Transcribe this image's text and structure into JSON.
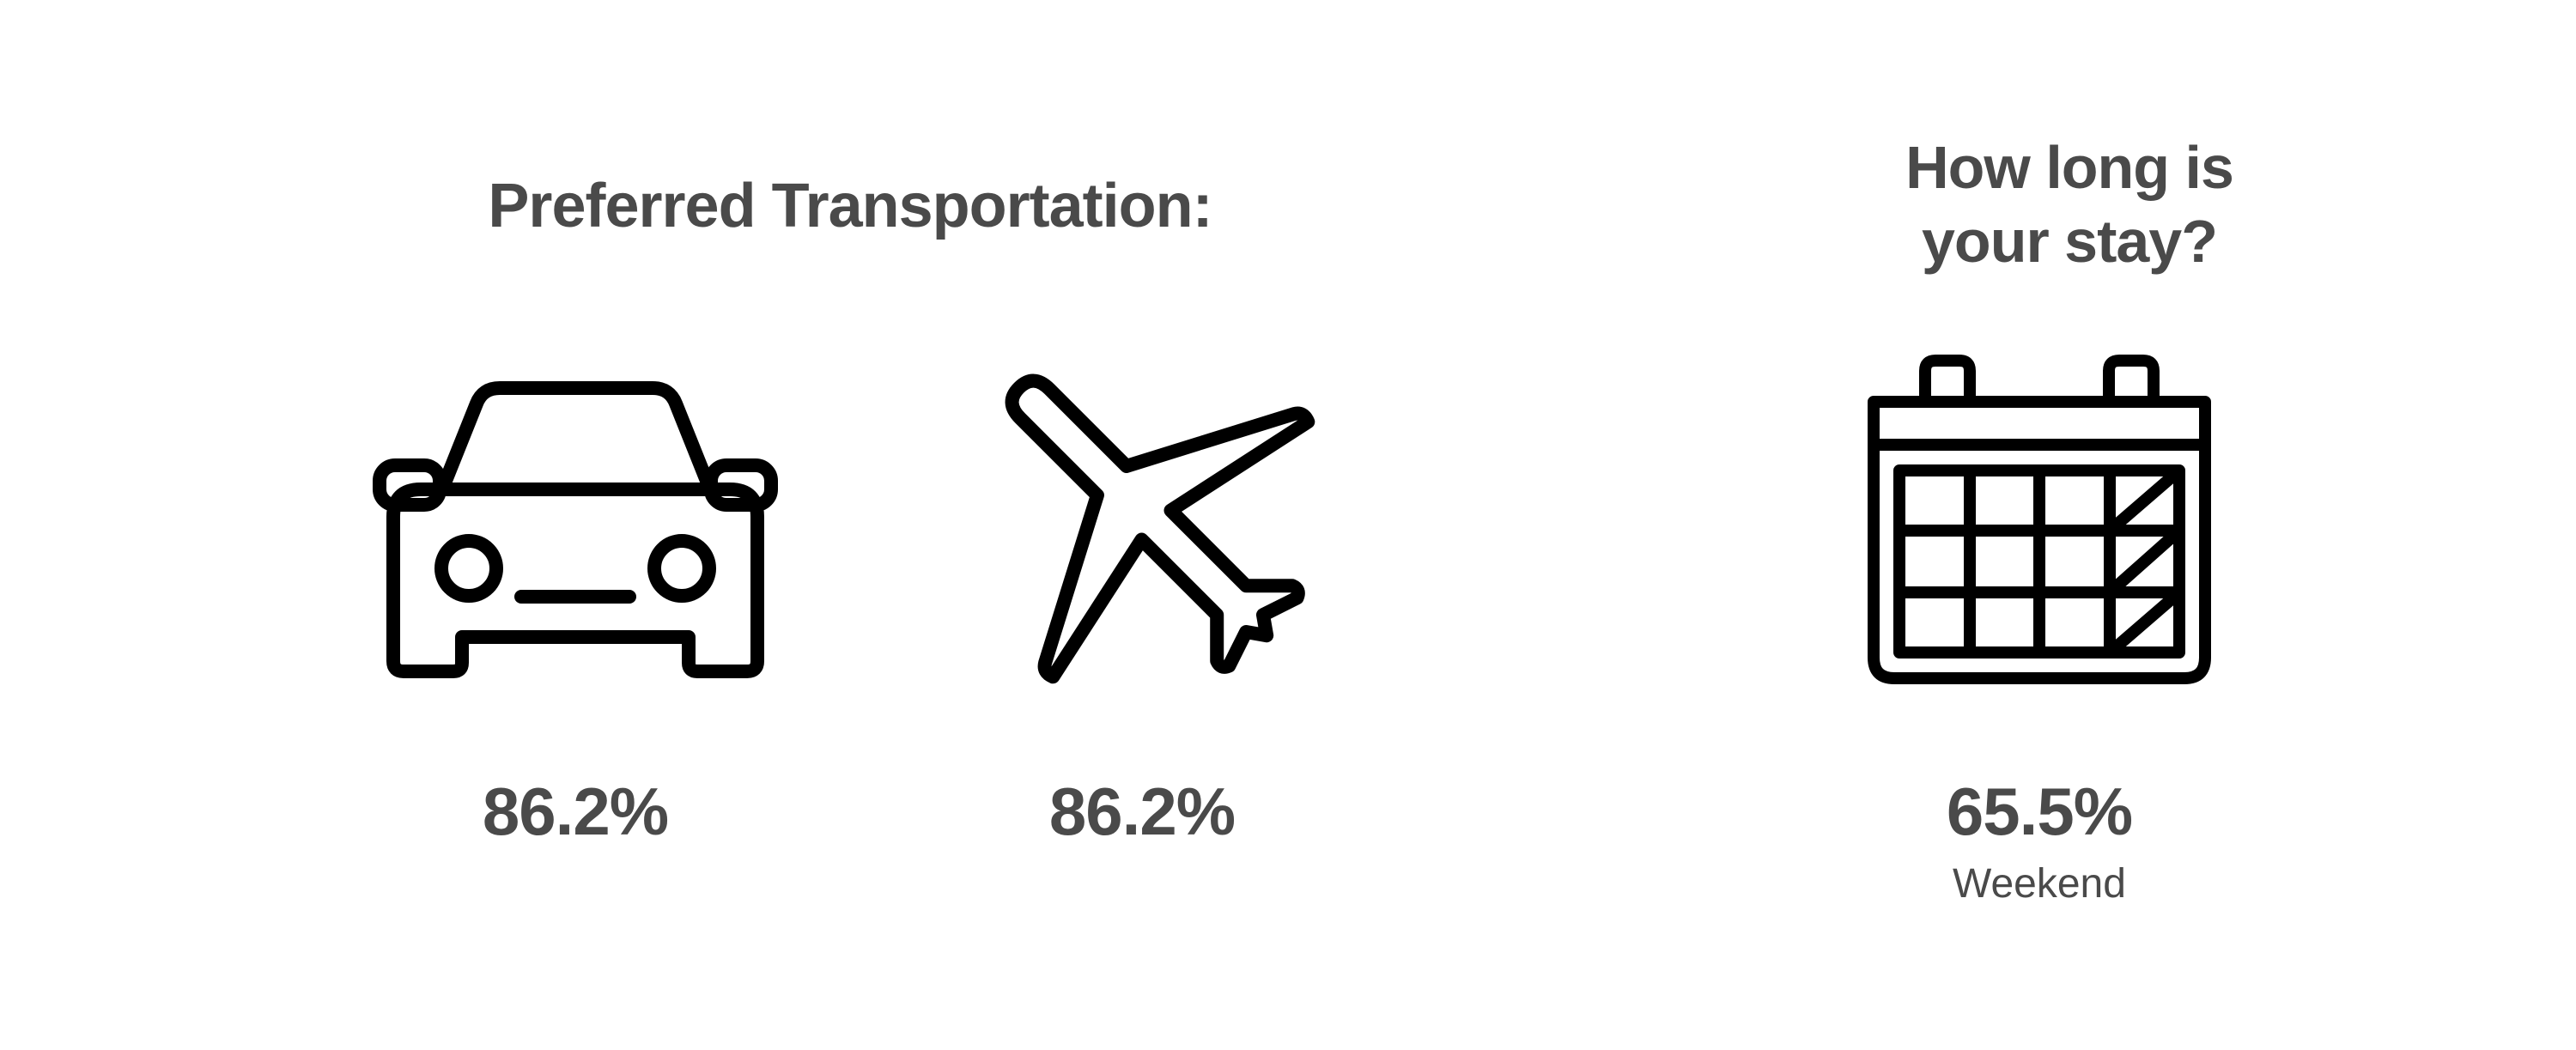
{
  "transportation": {
    "heading": "Preferred Transportation:",
    "options": [
      {
        "icon": "car-icon",
        "percent": "86.2%"
      },
      {
        "icon": "plane-icon",
        "percent": "86.2%"
      }
    ]
  },
  "stay": {
    "heading_line1": "How long is",
    "heading_line2": "your stay?",
    "icon": "calendar-icon",
    "percent": "65.5%",
    "label": "Weekend"
  },
  "colors": {
    "text": "#4a4a4a",
    "icon_stroke": "#000000",
    "background": "#ffffff"
  }
}
